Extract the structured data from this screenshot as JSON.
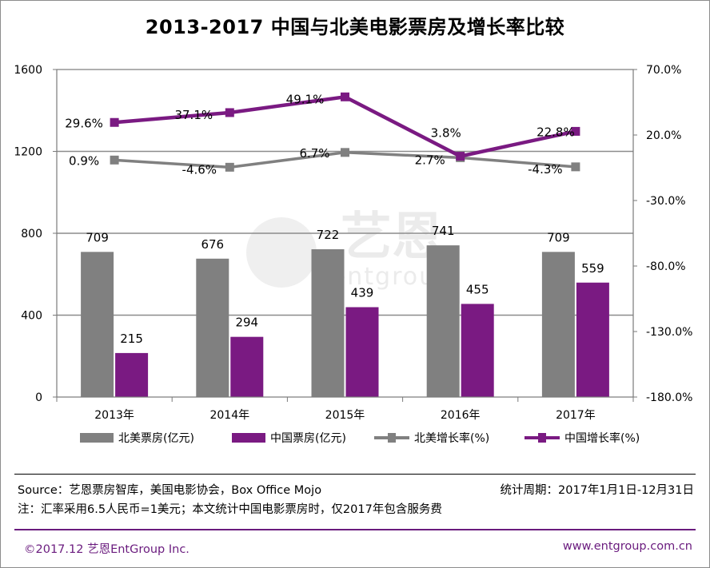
{
  "header": {
    "title": "2013-2017 中国与北美电影票房及增长率比较"
  },
  "chart_data": {
    "type": "bar",
    "title": "2013-2017 中国与北美电影票房及增长率比较",
    "categories": [
      "2013年",
      "2014年",
      "2015年",
      "2016年",
      "2017年"
    ],
    "y_left": {
      "ylim": [
        0,
        1600
      ],
      "ticks": [
        "0",
        "400",
        "800",
        "1200",
        "1600"
      ]
    },
    "y_right": {
      "ylim": [
        -180,
        70
      ],
      "ticks": [
        "-180.0%",
        "-130.0%",
        "-80.0%",
        "-30.0%",
        "20.0%",
        "70.0%"
      ]
    },
    "series": [
      {
        "name": "北美票房(亿元)",
        "kind": "bar",
        "axis": "left",
        "color": "#808080",
        "values": [
          709,
          676,
          722,
          741,
          709
        ],
        "labels": [
          "709",
          "676",
          "722",
          "741",
          "709"
        ]
      },
      {
        "name": "中国票房(亿元)",
        "kind": "bar",
        "axis": "left",
        "color": "#7a1a82",
        "values": [
          215,
          294,
          439,
          455,
          559
        ],
        "labels": [
          "215",
          "294",
          "439",
          "455",
          "559"
        ]
      },
      {
        "name": "北美增长率(%)",
        "kind": "line",
        "axis": "right",
        "color": "#808080",
        "values": [
          0.9,
          -4.6,
          6.7,
          2.7,
          -4.3
        ],
        "labels": [
          "0.9%",
          "-4.6%",
          "6.7%",
          "2.7%",
          "-4.3%"
        ]
      },
      {
        "name": "中国增长率(%)",
        "kind": "line",
        "axis": "right",
        "color": "#7a1a82",
        "values": [
          29.6,
          37.1,
          49.1,
          3.8,
          22.8
        ],
        "labels": [
          "29.6%",
          "37.1%",
          "49.1%",
          "3.8%",
          "22.8%"
        ]
      }
    ],
    "grid": true,
    "legend": "bottom",
    "watermark": {
      "brand_cn": "艺恩",
      "brand_en": "entgroup"
    }
  },
  "footer": {
    "source": "Source：艺恩票房智库，美国电影协会，Box Office Mojo",
    "period": "统计周期：2017年1月1日-12月31日",
    "note": "注：汇率采用6.5人民币=1美元；本文统计中国电影票房时，仅2017年包含服务费",
    "copyright": "©2017.12  艺恩EntGroup Inc.",
    "website": "www.entgroup.com.cn"
  }
}
